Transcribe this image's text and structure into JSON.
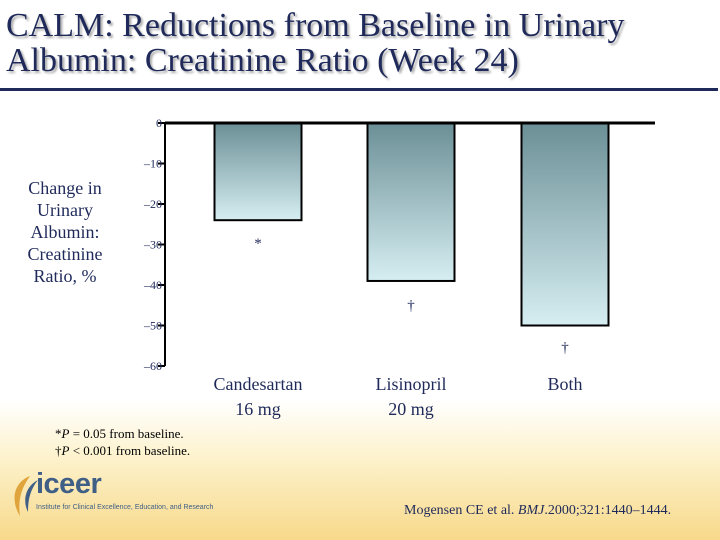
{
  "title": "CALM: Reductions from Baseline in Urinary Albumin: Creatinine Ratio (Week 24)",
  "y_axis_label_lines": [
    "Change in",
    "Urinary",
    "Albumin:",
    "Creatinine",
    "Ratio, %"
  ],
  "chart_data": {
    "type": "bar",
    "categories": [
      {
        "line1": "Candesartan",
        "line2": "16 mg"
      },
      {
        "line1": "Lisinopril",
        "line2": "20 mg"
      },
      {
        "line1": "Both",
        "line2": ""
      }
    ],
    "values": [
      -24,
      -39,
      -50
    ],
    "significance_markers": [
      "*",
      "†",
      "†"
    ],
    "yticks": [
      0,
      -10,
      -20,
      -30,
      -40,
      -50,
      -60
    ],
    "ytick_labels": [
      "0",
      "–10",
      "–20",
      "–30",
      "–40",
      "–50",
      "–60"
    ],
    "ylim": [
      -60,
      0
    ],
    "ylabel": "Change in Urinary Albumin: Creatinine Ratio, %",
    "xlabel": "",
    "grid": false
  },
  "footnotes": {
    "line1_prefix": "*",
    "line1_italic": "P",
    "line1_rest": " = 0.05 from baseline.",
    "line2_prefix": "†",
    "line2_italic": "P",
    "line2_rest": " < 0.001 from baseline."
  },
  "logo": {
    "name": "iceer",
    "tagline": "Institute for Clinical Excellence, Education, and Research"
  },
  "citation": {
    "authors": "Mogensen CE et al. ",
    "journal": "BMJ",
    "rest": ".2000;321:1440–1444."
  },
  "colors": {
    "title": "#1f2a5a",
    "bar_top": "#6b8f96",
    "bar_bottom": "#d6eef2",
    "axis": "#000000",
    "accent": "#3f5f86"
  }
}
